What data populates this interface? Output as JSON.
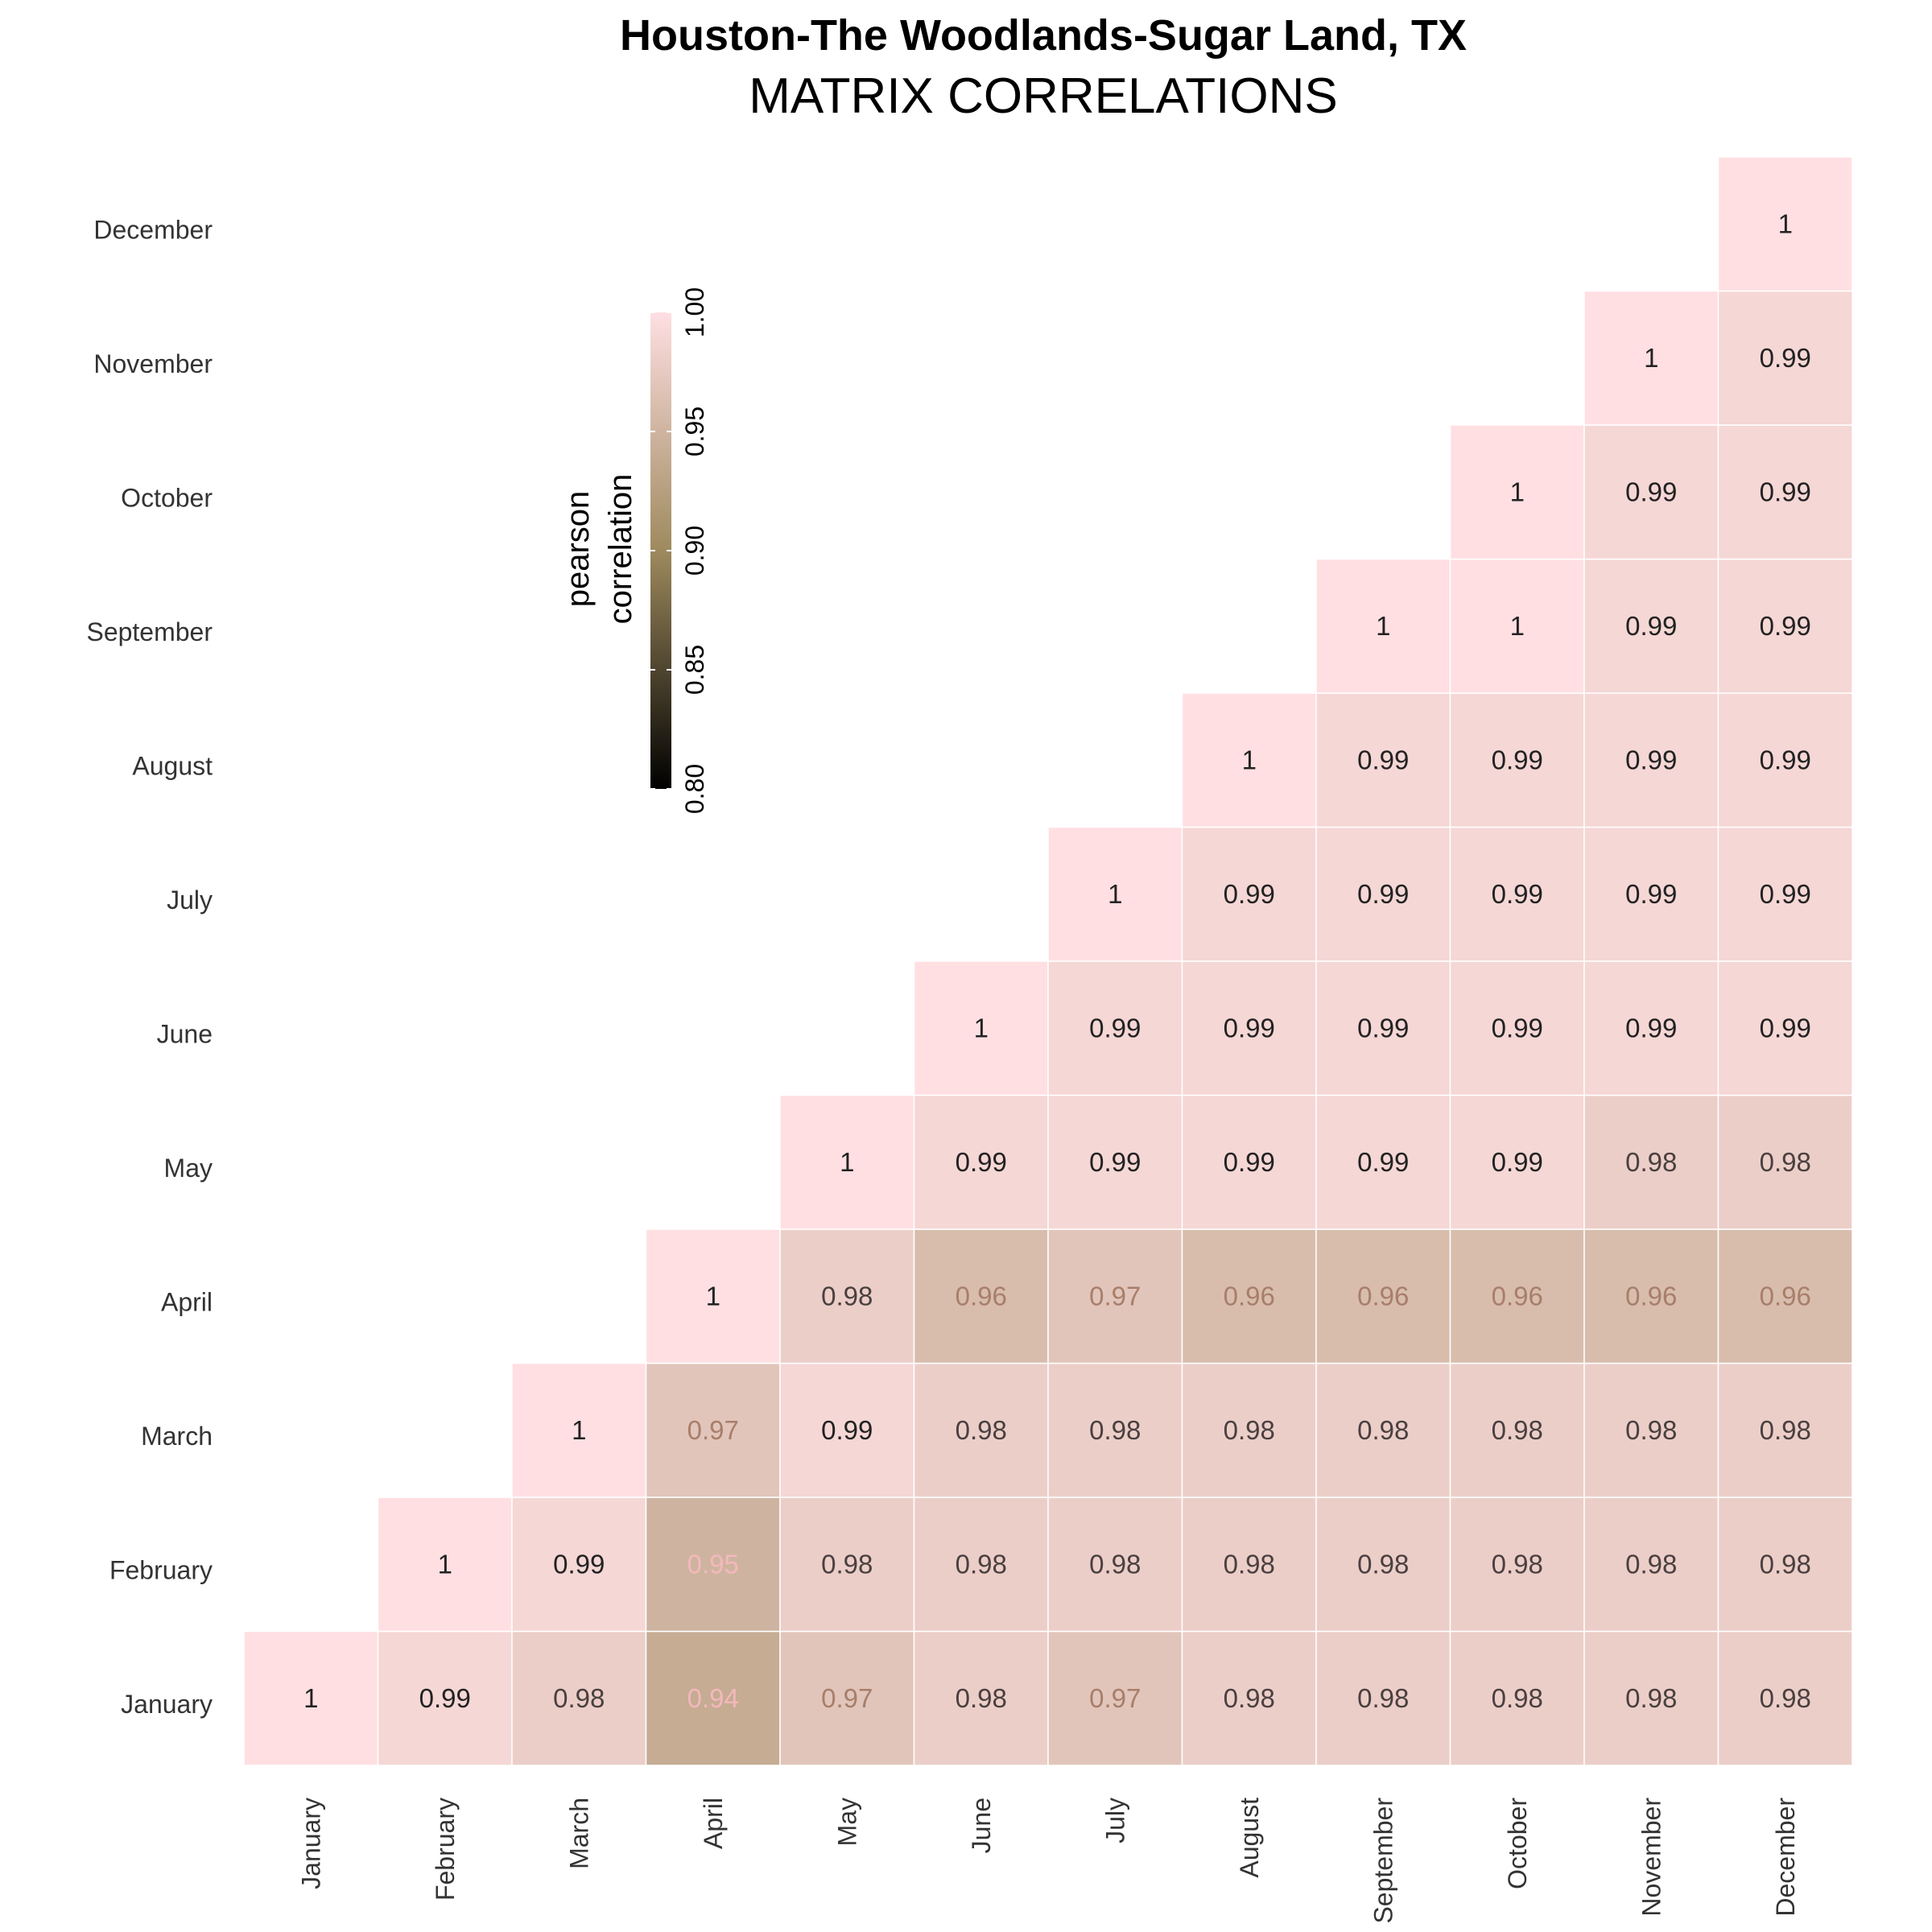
{
  "chart_data": {
    "type": "heatmap",
    "title": "Houston-The Woodlands-Sugar Land, TX",
    "subtitle": "MATRIX CORRELATIONS",
    "x_categories": [
      "January",
      "February",
      "March",
      "April",
      "May",
      "June",
      "July",
      "August",
      "September",
      "October",
      "November",
      "December"
    ],
    "y_categories": [
      "January",
      "February",
      "March",
      "April",
      "May",
      "June",
      "July",
      "August",
      "September",
      "October",
      "November",
      "December"
    ],
    "values": [
      [
        1,
        0.99,
        0.98,
        0.94,
        0.97,
        0.98,
        0.97,
        0.98,
        0.98,
        0.98,
        0.98,
        0.98
      ],
      [
        null,
        1,
        0.99,
        0.95,
        0.98,
        0.98,
        0.98,
        0.98,
        0.98,
        0.98,
        0.98,
        0.98
      ],
      [
        null,
        null,
        1,
        0.97,
        0.99,
        0.98,
        0.98,
        0.98,
        0.98,
        0.98,
        0.98,
        0.98
      ],
      [
        null,
        null,
        null,
        1,
        0.98,
        0.96,
        0.97,
        0.96,
        0.96,
        0.96,
        0.96,
        0.96
      ],
      [
        null,
        null,
        null,
        null,
        1,
        0.99,
        0.99,
        0.99,
        0.99,
        0.99,
        0.98,
        0.98
      ],
      [
        null,
        null,
        null,
        null,
        null,
        1,
        0.99,
        0.99,
        0.99,
        0.99,
        0.99,
        0.99
      ],
      [
        null,
        null,
        null,
        null,
        null,
        null,
        1,
        0.99,
        0.99,
        0.99,
        0.99,
        0.99
      ],
      [
        null,
        null,
        null,
        null,
        null,
        null,
        null,
        1,
        0.99,
        0.99,
        0.99,
        0.99
      ],
      [
        null,
        null,
        null,
        null,
        null,
        null,
        null,
        null,
        1,
        1,
        0.99,
        0.99
      ],
      [
        null,
        null,
        null,
        null,
        null,
        null,
        null,
        null,
        null,
        1,
        0.99,
        0.99
      ],
      [
        null,
        null,
        null,
        null,
        null,
        null,
        null,
        null,
        null,
        null,
        1,
        0.99
      ],
      [
        null,
        null,
        null,
        null,
        null,
        null,
        null,
        null,
        null,
        null,
        null,
        1
      ]
    ],
    "value_labels": [
      [
        "1",
        "0.99",
        "0.98",
        "0.94",
        "0.97",
        "0.98",
        "0.97",
        "0.98",
        "0.98",
        "0.98",
        "0.98",
        "0.98"
      ],
      [
        null,
        "1",
        "0.99",
        "0.95",
        "0.98",
        "0.98",
        "0.98",
        "0.98",
        "0.98",
        "0.98",
        "0.98",
        "0.98"
      ],
      [
        null,
        null,
        "1",
        "0.97",
        "0.99",
        "0.98",
        "0.98",
        "0.98",
        "0.98",
        "0.98",
        "0.98",
        "0.98"
      ],
      [
        null,
        null,
        null,
        "1",
        "0.98",
        "0.96",
        "0.97",
        "0.96",
        "0.96",
        "0.96",
        "0.96",
        "0.96"
      ],
      [
        null,
        null,
        null,
        null,
        "1",
        "0.99",
        "0.99",
        "0.99",
        "0.99",
        "0.99",
        "0.98",
        "0.98"
      ],
      [
        null,
        null,
        null,
        null,
        null,
        "1",
        "0.99",
        "0.99",
        "0.99",
        "0.99",
        "0.99",
        "0.99"
      ],
      [
        null,
        null,
        null,
        null,
        null,
        null,
        "1",
        "0.99",
        "0.99",
        "0.99",
        "0.99",
        "0.99"
      ],
      [
        null,
        null,
        null,
        null,
        null,
        null,
        null,
        "1",
        "0.99",
        "0.99",
        "0.99",
        "0.99"
      ],
      [
        null,
        null,
        null,
        null,
        null,
        null,
        null,
        null,
        "1",
        "1",
        "0.99",
        "0.99"
      ],
      [
        null,
        null,
        null,
        null,
        null,
        null,
        null,
        null,
        null,
        "1",
        "0.99",
        "0.99"
      ],
      [
        null,
        null,
        null,
        null,
        null,
        null,
        null,
        null,
        null,
        null,
        "1",
        "0.99"
      ],
      [
        null,
        null,
        null,
        null,
        null,
        null,
        null,
        null,
        null,
        null,
        null,
        "1"
      ]
    ],
    "colorbar": {
      "title_lines": [
        "pearson",
        "correlation"
      ],
      "range": [
        0.8,
        1.0
      ],
      "ticks": [
        0.8,
        0.85,
        0.9,
        0.95,
        1.0
      ],
      "tick_labels": [
        "0.80",
        "0.85",
        "0.90",
        "0.95",
        "1.00"
      ],
      "colors": [
        "#000000",
        "#9e8a5e",
        "#ffdfe2"
      ]
    },
    "grid": false,
    "legend_placement": "top-left"
  }
}
